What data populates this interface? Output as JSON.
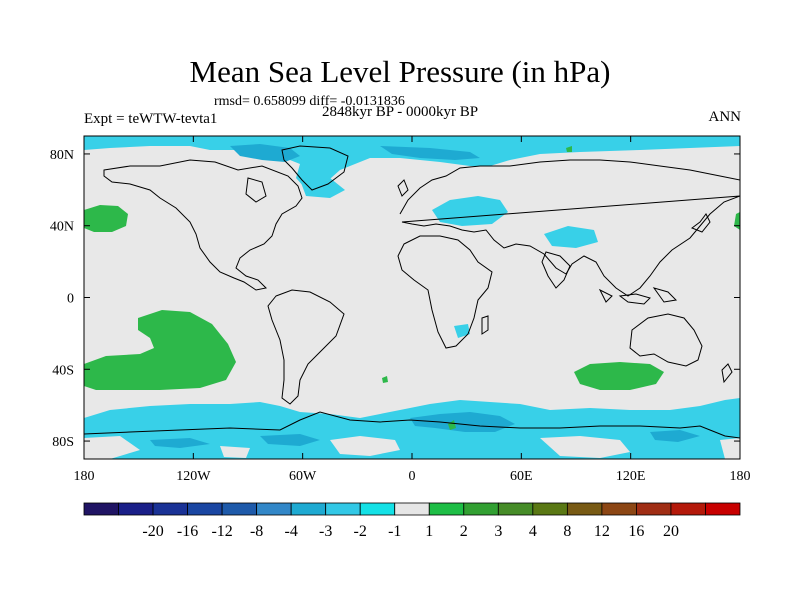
{
  "title": "Mean Sea Level Pressure (in hPa)",
  "stats": "rmsd= 0.658099 diff= -0.0131836",
  "expt": "Expt = teWTW-tevta1",
  "period": "2848kyr BP - 0000kyr BP",
  "season": "ANN",
  "map": {
    "background_color": "#e8e8e8",
    "coastline_color": "#000000",
    "lon_ticks": [
      {
        "value": -180,
        "label": "180"
      },
      {
        "value": -120,
        "label": "120W"
      },
      {
        "value": -60,
        "label": "60W"
      },
      {
        "value": 0,
        "label": "0"
      },
      {
        "value": 60,
        "label": "60E"
      },
      {
        "value": 120,
        "label": "120E"
      },
      {
        "value": 180,
        "label": "180"
      }
    ],
    "lat_ticks": [
      {
        "value": 80,
        "label": "80N"
      },
      {
        "value": 40,
        "label": "40N"
      },
      {
        "value": 0,
        "label": "0"
      },
      {
        "value": -40,
        "label": "40S"
      },
      {
        "value": -80,
        "label": "80S"
      }
    ],
    "lon_range": [
      -180,
      180
    ],
    "lat_range": [
      -90,
      90
    ]
  },
  "colorbar": {
    "colors": [
      "#201464",
      "#1a1f88",
      "#1a3296",
      "#1a46a2",
      "#1e5aaa",
      "#3287c8",
      "#1eaad2",
      "#32c8e6",
      "#14e1e6",
      "#e6e6e6",
      "#1ebe46",
      "#32a032",
      "#468c28",
      "#5a7814",
      "#785a14",
      "#8c4614",
      "#a02d14",
      "#b4190a",
      "#c80000"
    ],
    "labels": [
      "-20",
      "-16",
      "-12",
      "-8",
      "-4",
      "-3",
      "-2",
      "-1",
      "1",
      "2",
      "3",
      "4",
      "8",
      "12",
      "16",
      "20"
    ]
  },
  "anomalies": [
    {
      "type": "positive",
      "color": "#2db84a",
      "location": "North Pacific",
      "lon": -168,
      "lat": 42
    },
    {
      "type": "positive",
      "color": "#2db84a",
      "location": "South Pacific",
      "lon": -140,
      "lat": -25
    },
    {
      "type": "positive",
      "color": "#2db84a",
      "location": "Southern Indian Ocean",
      "lon": 100,
      "lat": -45
    },
    {
      "type": "negative",
      "color": "#38d0e8",
      "location": "Arctic / Greenland",
      "lon": -20,
      "lat": 80
    },
    {
      "type": "negative",
      "color": "#38d0e8",
      "location": "Europe",
      "lon": 30,
      "lat": 50
    },
    {
      "type": "negative",
      "color": "#38d0e8",
      "location": "Central Asia",
      "lon": 70,
      "lat": 35
    },
    {
      "type": "negative",
      "color": "#38d0e8",
      "location": "Southern Ocean",
      "lon": 0,
      "lat": -70
    }
  ]
}
